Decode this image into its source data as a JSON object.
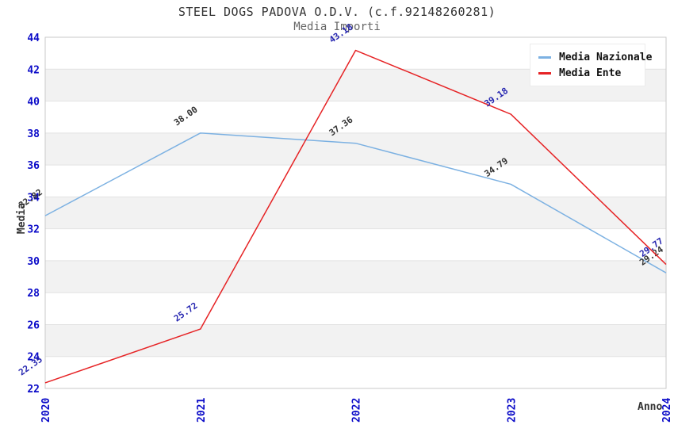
{
  "title": "STEEL DOGS PADOVA O.D.V. (c.f.92148260281)",
  "subtitle": "Media Importi",
  "chart_data": {
    "type": "line",
    "title": "STEEL DOGS PADOVA O.D.V. (c.f.92148260281)",
    "subtitle": "Media Importi",
    "x": [
      "2020",
      "2021",
      "2022",
      "2023",
      "2024"
    ],
    "series": [
      {
        "name": "Media Nazionale",
        "values": [
          32.82,
          38.0,
          37.36,
          34.79,
          29.24
        ],
        "color": "#7cb1e2",
        "label_color": "#333333"
      },
      {
        "name": "Media Ente",
        "values": [
          22.35,
          25.72,
          43.18,
          39.18,
          29.77
        ],
        "color": "#e62325",
        "label_color": "#2525b0"
      }
    ],
    "ylabel": "Media",
    "xlabel": "Anno",
    "ylim": [
      22,
      44
    ],
    "ytick_step": 2,
    "grid": "horizontal gridlines with alternating shaded bands",
    "legend_position": "top-right",
    "colors": {
      "tick_label": "#0a0ac8",
      "band": "#f2f2f2",
      "grid_line": "#e2e2e2",
      "border": "#c9c9c9",
      "title": "#333333",
      "subtitle": "#666666"
    }
  }
}
